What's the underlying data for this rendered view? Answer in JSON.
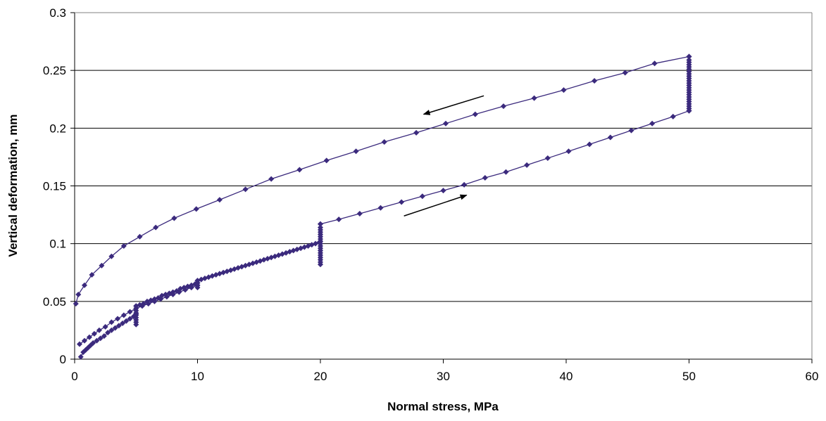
{
  "chart_data": {
    "type": "scatter",
    "title": "",
    "xlabel": "Normal stress, MPa",
    "ylabel": "Vertical deformation, mm",
    "xlim": [
      0,
      60
    ],
    "ylim": [
      0,
      0.3
    ],
    "xticks": [
      0,
      10,
      20,
      30,
      40,
      50,
      60
    ],
    "yticks": [
      0,
      0.05,
      0.1,
      0.15,
      0.2,
      0.25,
      0.3
    ],
    "xtick_labels": [
      "0",
      "10",
      "20",
      "30",
      "40",
      "50",
      "60"
    ],
    "ytick_labels": [
      "0",
      "0.05",
      "0.1",
      "0.15",
      "0.2",
      "0.25",
      "0.3"
    ],
    "grid": "horizontal",
    "legend": "none",
    "series_color": "#3B2A7D",
    "annotations": [
      {
        "type": "arrow",
        "direction": "unloading",
        "from": [
          33.3,
          0.228
        ],
        "to": [
          28.4,
          0.212
        ]
      },
      {
        "type": "arrow",
        "direction": "loading",
        "from": [
          26.8,
          0.124
        ],
        "to": [
          31.9,
          0.142
        ]
      }
    ],
    "series": [
      {
        "segments": [
          {
            "x": [
              0.5,
              0.7,
              0.9,
              1.1,
              1.3,
              1.5,
              1.8,
              2.1,
              2.4,
              2.7,
              3.0,
              3.3,
              3.6,
              3.9,
              4.2,
              4.5,
              4.8,
              5.0
            ],
            "y": [
              0.002,
              0.006,
              0.008,
              0.01,
              0.012,
              0.014,
              0.016,
              0.018,
              0.02,
              0.023,
              0.025,
              0.027,
              0.029,
              0.031,
              0.033,
              0.035,
              0.037,
              0.039
            ]
          },
          {
            "x": [
              5.0,
              5.0,
              5.0,
              5.0,
              5.0,
              5.0,
              5.0,
              5.0,
              5.0
            ],
            "y": [
              0.03,
              0.032,
              0.034,
              0.036,
              0.038,
              0.04,
              0.042,
              0.044,
              0.046
            ]
          },
          {
            "x": [
              5.0,
              5.3,
              5.6,
              5.9,
              6.2,
              6.5,
              6.8,
              7.1,
              7.4,
              7.7,
              8.0,
              8.3,
              8.6,
              8.9,
              9.2,
              9.5,
              9.8,
              10.0
            ],
            "y": [
              0.046,
              0.047,
              0.048,
              0.05,
              0.051,
              0.052,
              0.053,
              0.055,
              0.056,
              0.057,
              0.058,
              0.059,
              0.061,
              0.062,
              0.063,
              0.064,
              0.065,
              0.066
            ]
          },
          {
            "x": [
              10.0,
              10.0,
              10.0,
              10.0
            ],
            "y": [
              0.062,
              0.064,
              0.066,
              0.068
            ]
          },
          {
            "x": [
              10.0,
              10.3,
              10.6,
              10.9,
              11.2,
              11.5,
              11.8,
              12.1,
              12.4,
              12.7,
              13.0,
              13.3,
              13.6,
              13.9,
              14.2,
              14.5,
              14.8,
              15.1,
              15.4,
              15.7,
              16.0,
              16.3,
              16.6,
              16.9,
              17.2,
              17.5,
              17.8,
              18.1,
              18.4,
              18.7,
              19.0,
              19.3,
              19.6,
              19.9,
              20.0
            ],
            "y": [
              0.068,
              0.069,
              0.07,
              0.071,
              0.072,
              0.073,
              0.074,
              0.075,
              0.076,
              0.077,
              0.078,
              0.079,
              0.08,
              0.081,
              0.082,
              0.083,
              0.084,
              0.085,
              0.086,
              0.087,
              0.088,
              0.089,
              0.09,
              0.091,
              0.092,
              0.093,
              0.094,
              0.095,
              0.096,
              0.097,
              0.098,
              0.099,
              0.1,
              0.101,
              0.102
            ]
          },
          {
            "x": [
              20.0,
              20.0,
              20.0,
              20.0,
              20.0,
              20.0,
              20.0,
              20.0,
              20.0,
              20.0,
              20.0,
              20.0,
              20.0,
              20.0,
              20.0,
              20.0,
              20.0,
              20.0
            ],
            "y": [
              0.082,
              0.084,
              0.086,
              0.088,
              0.09,
              0.092,
              0.094,
              0.096,
              0.098,
              0.1,
              0.102,
              0.104,
              0.106,
              0.108,
              0.11,
              0.112,
              0.114,
              0.117
            ]
          },
          {
            "x": [
              20.0,
              21.5,
              23.2,
              24.9,
              26.6,
              28.3,
              30.0,
              31.7,
              33.4,
              35.1,
              36.8,
              38.5,
              40.2,
              41.9,
              43.6,
              45.3,
              47.0,
              48.7,
              50.0
            ],
            "y": [
              0.117,
              0.121,
              0.126,
              0.131,
              0.136,
              0.141,
              0.146,
              0.151,
              0.157,
              0.162,
              0.168,
              0.174,
              0.18,
              0.186,
              0.192,
              0.198,
              0.204,
              0.21,
              0.215
            ]
          },
          {
            "x": [
              50.0,
              50.0,
              50.0,
              50.0,
              50.0,
              50.0,
              50.0,
              50.0,
              50.0,
              50.0,
              50.0,
              50.0,
              50.0,
              50.0,
              50.0,
              50.0,
              50.0,
              50.0,
              50.0,
              50.0,
              50.0,
              50.0,
              50.0,
              50.0
            ],
            "y": [
              0.215,
              0.217,
              0.219,
              0.221,
              0.223,
              0.225,
              0.227,
              0.229,
              0.231,
              0.233,
              0.235,
              0.237,
              0.239,
              0.241,
              0.243,
              0.245,
              0.247,
              0.249,
              0.251,
              0.253,
              0.255,
              0.257,
              0.259,
              0.262
            ]
          },
          {
            "x": [
              50.0,
              47.2,
              44.8,
              42.3,
              39.8,
              37.4,
              34.9,
              32.6,
              30.2,
              27.8,
              25.2,
              22.9,
              20.5,
              18.3,
              16.0,
              13.9,
              11.8,
              9.9,
              8.1,
              6.6,
              5.3,
              4.0,
              3.0,
              2.2,
              1.4,
              0.8,
              0.3,
              0.1
            ],
            "y": [
              0.262,
              0.256,
              0.248,
              0.241,
              0.233,
              0.226,
              0.219,
              0.212,
              0.204,
              0.196,
              0.188,
              0.18,
              0.172,
              0.164,
              0.156,
              0.147,
              0.138,
              0.13,
              0.122,
              0.114,
              0.106,
              0.098,
              0.089,
              0.081,
              0.073,
              0.064,
              0.056,
              0.048
            ]
          },
          {
            "x": [
              0.4,
              0.8,
              1.2,
              1.6,
              2.0,
              2.5,
              3.0,
              3.5,
              4.0,
              4.5,
              5.0,
              5.5,
              6.0,
              6.5,
              7.0,
              7.5,
              8.0,
              8.5,
              9.0,
              9.5,
              10.0
            ],
            "y": [
              0.013,
              0.016,
              0.019,
              0.022,
              0.025,
              0.028,
              0.032,
              0.035,
              0.038,
              0.041,
              0.044,
              0.046,
              0.048,
              0.05,
              0.052,
              0.054,
              0.056,
              0.058,
              0.06,
              0.062,
              0.064
            ]
          }
        ]
      }
    ]
  }
}
